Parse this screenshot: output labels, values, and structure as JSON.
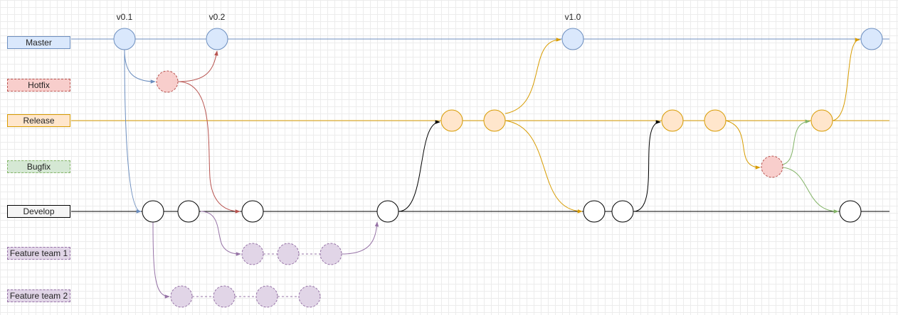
{
  "branches": {
    "master": {
      "label": "Master",
      "fill": "#dae8fc",
      "stroke": "#6c8ebf"
    },
    "hotfix": {
      "label": "Hotfix",
      "fill": "#f8cecc",
      "stroke": "#b85450"
    },
    "release": {
      "label": "Release",
      "fill": "#ffe6cc",
      "stroke": "#d79b00"
    },
    "bugfix": {
      "label": "Bugfix",
      "fill": "#d5e8d4",
      "stroke": "#82b366"
    },
    "develop": {
      "label": "Develop",
      "fill": "#f5f5f5",
      "stroke": "#000000"
    },
    "feature1": {
      "label": "Feature team 1",
      "fill": "#e1d5e7",
      "stroke": "#9673a6"
    },
    "feature2": {
      "label": "Feature team 2",
      "fill": "#e1d5e7",
      "stroke": "#9673a6"
    }
  },
  "tags": {
    "v01": "v0.1",
    "v02": "v0.2",
    "v10": "v1.0"
  }
}
